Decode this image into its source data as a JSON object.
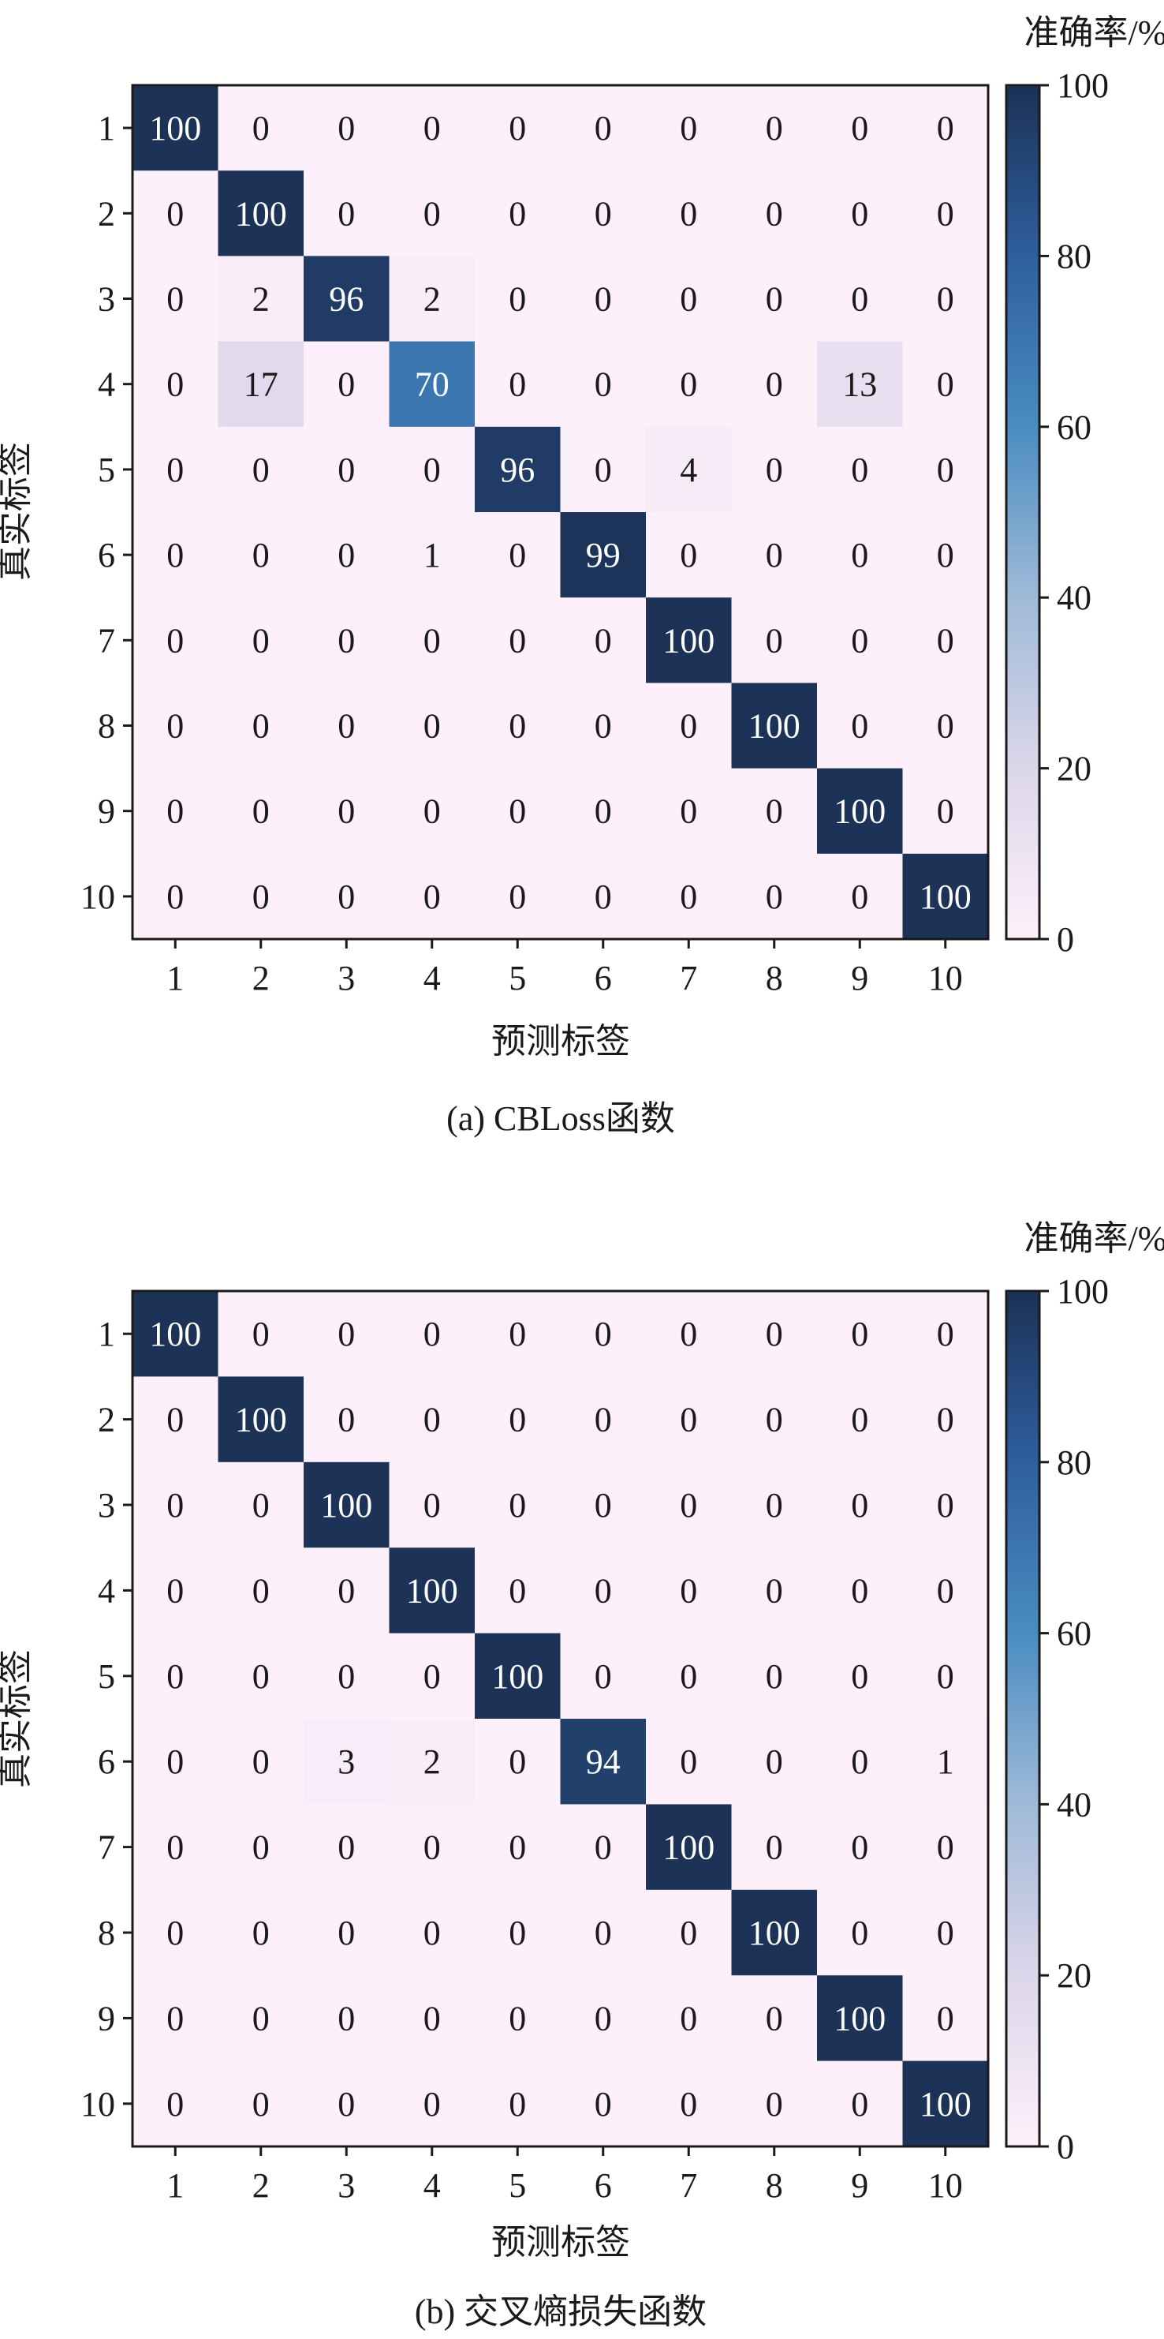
{
  "chart_data": [
    {
      "type": "heatmap",
      "title": "",
      "caption": "(a) CBLoss函数",
      "xlabel": "预测标签",
      "ylabel": "真实标签",
      "x_categories": [
        "1",
        "2",
        "3",
        "4",
        "5",
        "6",
        "7",
        "8",
        "9",
        "10"
      ],
      "y_categories": [
        "1",
        "2",
        "3",
        "4",
        "5",
        "6",
        "7",
        "8",
        "9",
        "10"
      ],
      "colorbar": {
        "label": "准确率/%",
        "range": [
          0,
          100
        ],
        "ticks": [
          0,
          20,
          40,
          60,
          80,
          100
        ]
      },
      "values": [
        [
          100,
          0,
          0,
          0,
          0,
          0,
          0,
          0,
          0,
          0
        ],
        [
          0,
          100,
          0,
          0,
          0,
          0,
          0,
          0,
          0,
          0
        ],
        [
          0,
          2,
          96,
          2,
          0,
          0,
          0,
          0,
          0,
          0
        ],
        [
          0,
          17,
          0,
          70,
          0,
          0,
          0,
          0,
          13,
          0
        ],
        [
          0,
          0,
          0,
          0,
          96,
          0,
          4,
          0,
          0,
          0
        ],
        [
          0,
          0,
          0,
          1,
          0,
          99,
          0,
          0,
          0,
          0
        ],
        [
          0,
          0,
          0,
          0,
          0,
          0,
          100,
          0,
          0,
          0
        ],
        [
          0,
          0,
          0,
          0,
          0,
          0,
          0,
          100,
          0,
          0
        ],
        [
          0,
          0,
          0,
          0,
          0,
          0,
          0,
          0,
          100,
          0
        ],
        [
          0,
          0,
          0,
          0,
          0,
          0,
          0,
          0,
          0,
          100
        ]
      ]
    },
    {
      "type": "heatmap",
      "title": "",
      "caption": "(b) 交叉熵损失函数",
      "xlabel": "预测标签",
      "ylabel": "真实标签",
      "x_categories": [
        "1",
        "2",
        "3",
        "4",
        "5",
        "6",
        "7",
        "8",
        "9",
        "10"
      ],
      "y_categories": [
        "1",
        "2",
        "3",
        "4",
        "5",
        "6",
        "7",
        "8",
        "9",
        "10"
      ],
      "colorbar": {
        "label": "准确率/%",
        "range": [
          0,
          100
        ],
        "ticks": [
          0,
          20,
          40,
          60,
          80,
          100
        ]
      },
      "values": [
        [
          100,
          0,
          0,
          0,
          0,
          0,
          0,
          0,
          0,
          0
        ],
        [
          0,
          100,
          0,
          0,
          0,
          0,
          0,
          0,
          0,
          0
        ],
        [
          0,
          0,
          100,
          0,
          0,
          0,
          0,
          0,
          0,
          0
        ],
        [
          0,
          0,
          0,
          100,
          0,
          0,
          0,
          0,
          0,
          0
        ],
        [
          0,
          0,
          0,
          0,
          100,
          0,
          0,
          0,
          0,
          0
        ],
        [
          0,
          0,
          3,
          2,
          0,
          94,
          0,
          0,
          0,
          1
        ],
        [
          0,
          0,
          0,
          0,
          0,
          0,
          100,
          0,
          0,
          0
        ],
        [
          0,
          0,
          0,
          0,
          0,
          0,
          0,
          100,
          0,
          0
        ],
        [
          0,
          0,
          0,
          0,
          0,
          0,
          0,
          0,
          100,
          0
        ],
        [
          0,
          0,
          0,
          0,
          0,
          0,
          0,
          0,
          0,
          100
        ]
      ]
    }
  ]
}
